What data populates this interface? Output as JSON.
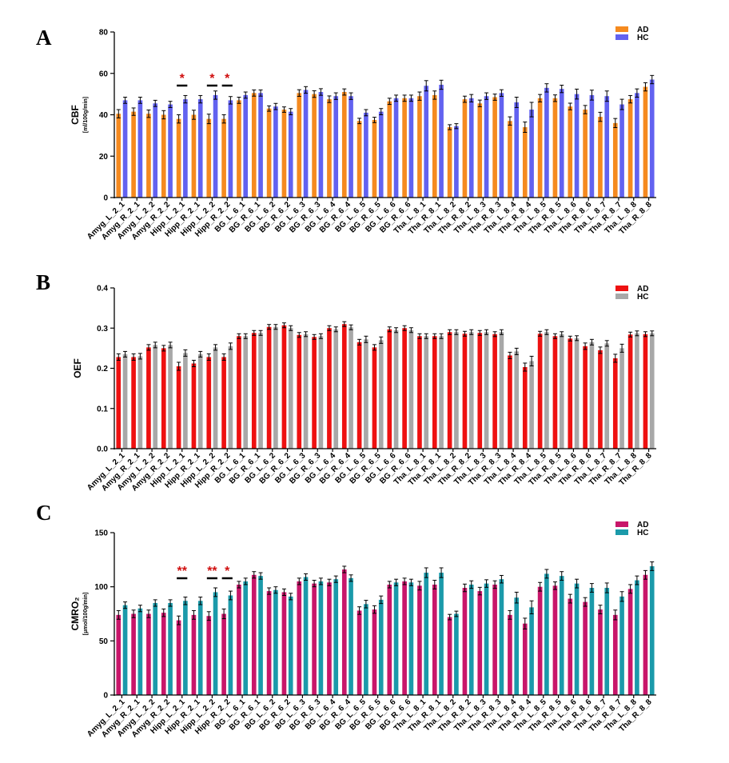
{
  "chart_data": [
    {
      "panel": "A",
      "type": "bar",
      "ylabel": "CBF",
      "yunit": "[ml/100g/min]",
      "ylim": [
        0,
        80
      ],
      "yticks": [
        0,
        20,
        40,
        60,
        80
      ],
      "categories": [
        "Amyg_L_2_1",
        "Amyg_R_2_1",
        "Amyg_L_2_2",
        "Amyg_R_2_2",
        "Hipp_L_2_1",
        "Hipp_R_2_1",
        "Hipp_L_2_2",
        "Hipp_R_2_2",
        "BG_L_6_1",
        "BG_R_6_1",
        "BG_L_6_2",
        "BG_R_6_2",
        "BG_L_6_3",
        "BG_R_6_3",
        "BG_L_6_4",
        "BG_R_6_4",
        "BG_L_6_5",
        "BG_R_6_5",
        "BG_L_6_6",
        "BG_R_6_6",
        "Tha_L_8_1",
        "Tha_R_8_1",
        "Tha_L_8_2",
        "Tha_R_8_2",
        "Tha_L_8_3",
        "Tha_R_8_3",
        "Tha_L_8_4",
        "Tha_R_8_4",
        "Tha_L_8_5",
        "Tha_R_8_5",
        "Tha_L_8_6",
        "Tha_R_8_6",
        "Tha_L_8_7",
        "Tha_R_8_7",
        "Tha_L_8_8",
        "Tha_R_8_8"
      ],
      "series": [
        {
          "name": "AD",
          "color": "#f58a1f",
          "values": [
            40.5,
            41.5,
            40.5,
            40,
            38,
            40,
            38,
            38,
            47,
            50.5,
            43,
            42.5,
            50.5,
            50,
            47.5,
            51,
            37,
            37.5,
            46.5,
            48,
            49,
            49.5,
            34,
            47.5,
            45.5,
            48.5,
            37,
            34,
            48,
            48,
            44,
            42.5,
            39,
            36,
            47.5,
            53.5
          ],
          "errors": [
            2,
            1.8,
            1.8,
            2,
            2,
            2.2,
            2.3,
            2,
            1.5,
            1.5,
            1.3,
            1.3,
            1.6,
            1.6,
            1.6,
            1.5,
            1.3,
            1.3,
            1.5,
            1.5,
            2,
            2,
            1.2,
            1.5,
            1.6,
            1.5,
            2,
            2.5,
            1.8,
            1.6,
            1.6,
            2,
            2.2,
            2.2,
            1.8,
            2
          ]
        },
        {
          "name": "HC",
          "color": "#6262f0",
          "values": [
            47,
            47,
            45.5,
            45,
            47.5,
            47.5,
            49.5,
            47,
            49.5,
            50.5,
            44,
            41.5,
            52,
            51,
            49,
            49,
            41,
            41.5,
            48,
            48,
            54,
            54.5,
            34.5,
            48,
            49,
            50.5,
            46,
            42.5,
            53,
            52.5,
            50,
            49.5,
            49,
            45,
            50.5,
            57
          ],
          "errors": [
            1.5,
            1.5,
            1.5,
            1.5,
            1.8,
            1.8,
            2,
            1.8,
            1.5,
            1.5,
            1.5,
            1.5,
            1.6,
            1.6,
            1.6,
            1.6,
            1.5,
            1.5,
            1.5,
            1.5,
            2.5,
            2.2,
            1.2,
            1.8,
            1.6,
            1.6,
            2.5,
            3.5,
            2,
            1.8,
            2.4,
            2.4,
            2.5,
            2.5,
            2,
            2
          ]
        }
      ],
      "significance": [
        {
          "category_index": 4,
          "label": "*"
        },
        {
          "category_index": 6,
          "label": "*"
        },
        {
          "category_index": 7,
          "label": "*"
        }
      ]
    },
    {
      "panel": "B",
      "type": "bar",
      "ylabel": "OEF",
      "yunit": "",
      "ylim": [
        0,
        0.4
      ],
      "yticks": [
        0.0,
        0.1,
        0.2,
        0.3,
        0.4
      ],
      "ytick_labels": [
        "0.0",
        "0.1",
        "0.2",
        "0.3",
        "0.4"
      ],
      "categories": [
        "Amyg_L_2_1",
        "Amyg_R_2_1",
        "Amyg_L_2_2",
        "Amyg_R_2_2",
        "Hipp_L_2_1",
        "Hipp_R_2_1",
        "Hipp_L_2_2",
        "Hipp_R_2_2",
        "BG_L_6_1",
        "BG_R_6_1",
        "BG_L_6_2",
        "BG_R_6_2",
        "BG_L_6_3",
        "BG_R_6_3",
        "BG_L_6_4",
        "BG_R_6_4",
        "BG_L_6_5",
        "BG_R_6_5",
        "BG_L_6_6",
        "BG_R_6_6",
        "Tha_L_8_1",
        "Tha_R_8_1",
        "Tha_L_8_2",
        "Tha_R_8_2",
        "Tha_L_8_3",
        "Tha_R_8_3",
        "Tha_L_8_4",
        "Tha_R_8_4",
        "Tha_L_8_5",
        "Tha_R_8_5",
        "Tha_L_8_6",
        "Tha_R_8_6",
        "Tha_L_8_7",
        "Tha_R_8_7",
        "Tha_L_8_8",
        "Tha_R_8_8"
      ],
      "series": [
        {
          "name": "AD",
          "color": "#ee1111",
          "values": [
            0.228,
            0.228,
            0.252,
            0.25,
            0.205,
            0.212,
            0.228,
            0.228,
            0.28,
            0.288,
            0.303,
            0.307,
            0.283,
            0.278,
            0.3,
            0.31,
            0.265,
            0.252,
            0.297,
            0.3,
            0.28,
            0.28,
            0.29,
            0.286,
            0.288,
            0.285,
            0.232,
            0.203,
            0.286,
            0.28,
            0.274,
            0.255,
            0.245,
            0.225,
            0.284,
            0.285
          ],
          "errors": [
            0.008,
            0.008,
            0.007,
            0.007,
            0.01,
            0.008,
            0.008,
            0.008,
            0.006,
            0.006,
            0.006,
            0.006,
            0.006,
            0.006,
            0.006,
            0.006,
            0.007,
            0.007,
            0.006,
            0.006,
            0.006,
            0.006,
            0.006,
            0.006,
            0.006,
            0.006,
            0.008,
            0.01,
            0.006,
            0.006,
            0.006,
            0.008,
            0.008,
            0.01,
            0.006,
            0.006
          ]
        },
        {
          "name": "HC",
          "color": "#a8a8a8",
          "values": [
            0.235,
            0.23,
            0.258,
            0.258,
            0.238,
            0.235,
            0.252,
            0.255,
            0.28,
            0.288,
            0.303,
            0.3,
            0.285,
            0.28,
            0.297,
            0.302,
            0.272,
            0.27,
            0.295,
            0.295,
            0.28,
            0.28,
            0.29,
            0.29,
            0.29,
            0.29,
            0.242,
            0.218,
            0.29,
            0.285,
            0.275,
            0.265,
            0.262,
            0.25,
            0.287,
            0.287
          ],
          "errors": [
            0.007,
            0.007,
            0.007,
            0.007,
            0.008,
            0.007,
            0.007,
            0.008,
            0.006,
            0.006,
            0.006,
            0.006,
            0.006,
            0.006,
            0.006,
            0.006,
            0.008,
            0.008,
            0.006,
            0.006,
            0.006,
            0.006,
            0.006,
            0.006,
            0.006,
            0.006,
            0.008,
            0.012,
            0.006,
            0.006,
            0.006,
            0.007,
            0.007,
            0.01,
            0.006,
            0.006
          ]
        }
      ],
      "significance": []
    },
    {
      "panel": "C",
      "type": "bar",
      "ylabel": "CMRO₂",
      "yunit": "[μmol/100g/min]",
      "ylim": [
        0,
        150
      ],
      "yticks": [
        0,
        50,
        100,
        150
      ],
      "categories": [
        "Amyg_L_2_1",
        "Amyg_R_2_1",
        "Amyg_L_2_2",
        "Amyg_R_2_2",
        "Hipp_L_2_1",
        "Hipp_R_2_1",
        "Hipp_L_2_2",
        "Hipp_R_2_2",
        "BG_L_6_1",
        "BG_R_6_1",
        "BG_L_6_2",
        "BG_R_6_2",
        "BG_L_6_3",
        "BG_R_6_3",
        "BG_L_6_4",
        "BG_R_6_4",
        "BG_L_6_5",
        "BG_R_6_5",
        "BG_L_6_6",
        "BG_R_6_6",
        "Tha_L_8_1",
        "Tha_R_8_1",
        "Tha_L_8_2",
        "Tha_R_8_2",
        "Tha_L_8_3",
        "Tha_R_8_3",
        "Tha_L_8_4",
        "Tha_R_8_4",
        "Tha_L_8_5",
        "Tha_R_8_5",
        "Tha_L_8_6",
        "Tha_R_8_6",
        "Tha_L_8_7",
        "Tha_R_8_7",
        "Tha_L_8_8",
        "Tha_R_8_8"
      ],
      "series": [
        {
          "name": "AD",
          "color": "#c8166a",
          "values": [
            74,
            75,
            75,
            76,
            69,
            74,
            73,
            75,
            102,
            111,
            96,
            95,
            105,
            103,
            104,
            116,
            78,
            79,
            102,
            105,
            101,
            102,
            72,
            99,
            96,
            102,
            74,
            66,
            100,
            101,
            89,
            86,
            79,
            74,
            98,
            111
          ],
          "errors": [
            4,
            3.5,
            3.5,
            3.5,
            4,
            4,
            4,
            4.5,
            3,
            3,
            3,
            3,
            3,
            3,
            3,
            3,
            3.5,
            3.5,
            3,
            3,
            4,
            4,
            2.5,
            3.5,
            3.5,
            3.5,
            4,
            5,
            4,
            3.5,
            4,
            4,
            4,
            4.5,
            4,
            4
          ]
        },
        {
          "name": "HC",
          "color": "#1b9aaa",
          "values": [
            83,
            80,
            85,
            85,
            87,
            87,
            95,
            92,
            105,
            110,
            97,
            91,
            109,
            105,
            107,
            108,
            84,
            88,
            104,
            104,
            113,
            113,
            75,
            102,
            103,
            107,
            90,
            81,
            112,
            110,
            103,
            99,
            99,
            91,
            106,
            119
          ],
          "errors": [
            3,
            3,
            3,
            3,
            3.5,
            3.5,
            4,
            4,
            3,
            3,
            3,
            3,
            3,
            3,
            3,
            3,
            3.5,
            3.5,
            3,
            3,
            4.5,
            4.5,
            2.5,
            3.5,
            3.5,
            3.5,
            5,
            6,
            4,
            4,
            4,
            4,
            4.5,
            4.5,
            4,
            4
          ]
        }
      ],
      "significance": [
        {
          "category_index": 4,
          "label": "**"
        },
        {
          "category_index": 6,
          "label": "**"
        },
        {
          "category_index": 7,
          "label": "*"
        }
      ]
    }
  ]
}
